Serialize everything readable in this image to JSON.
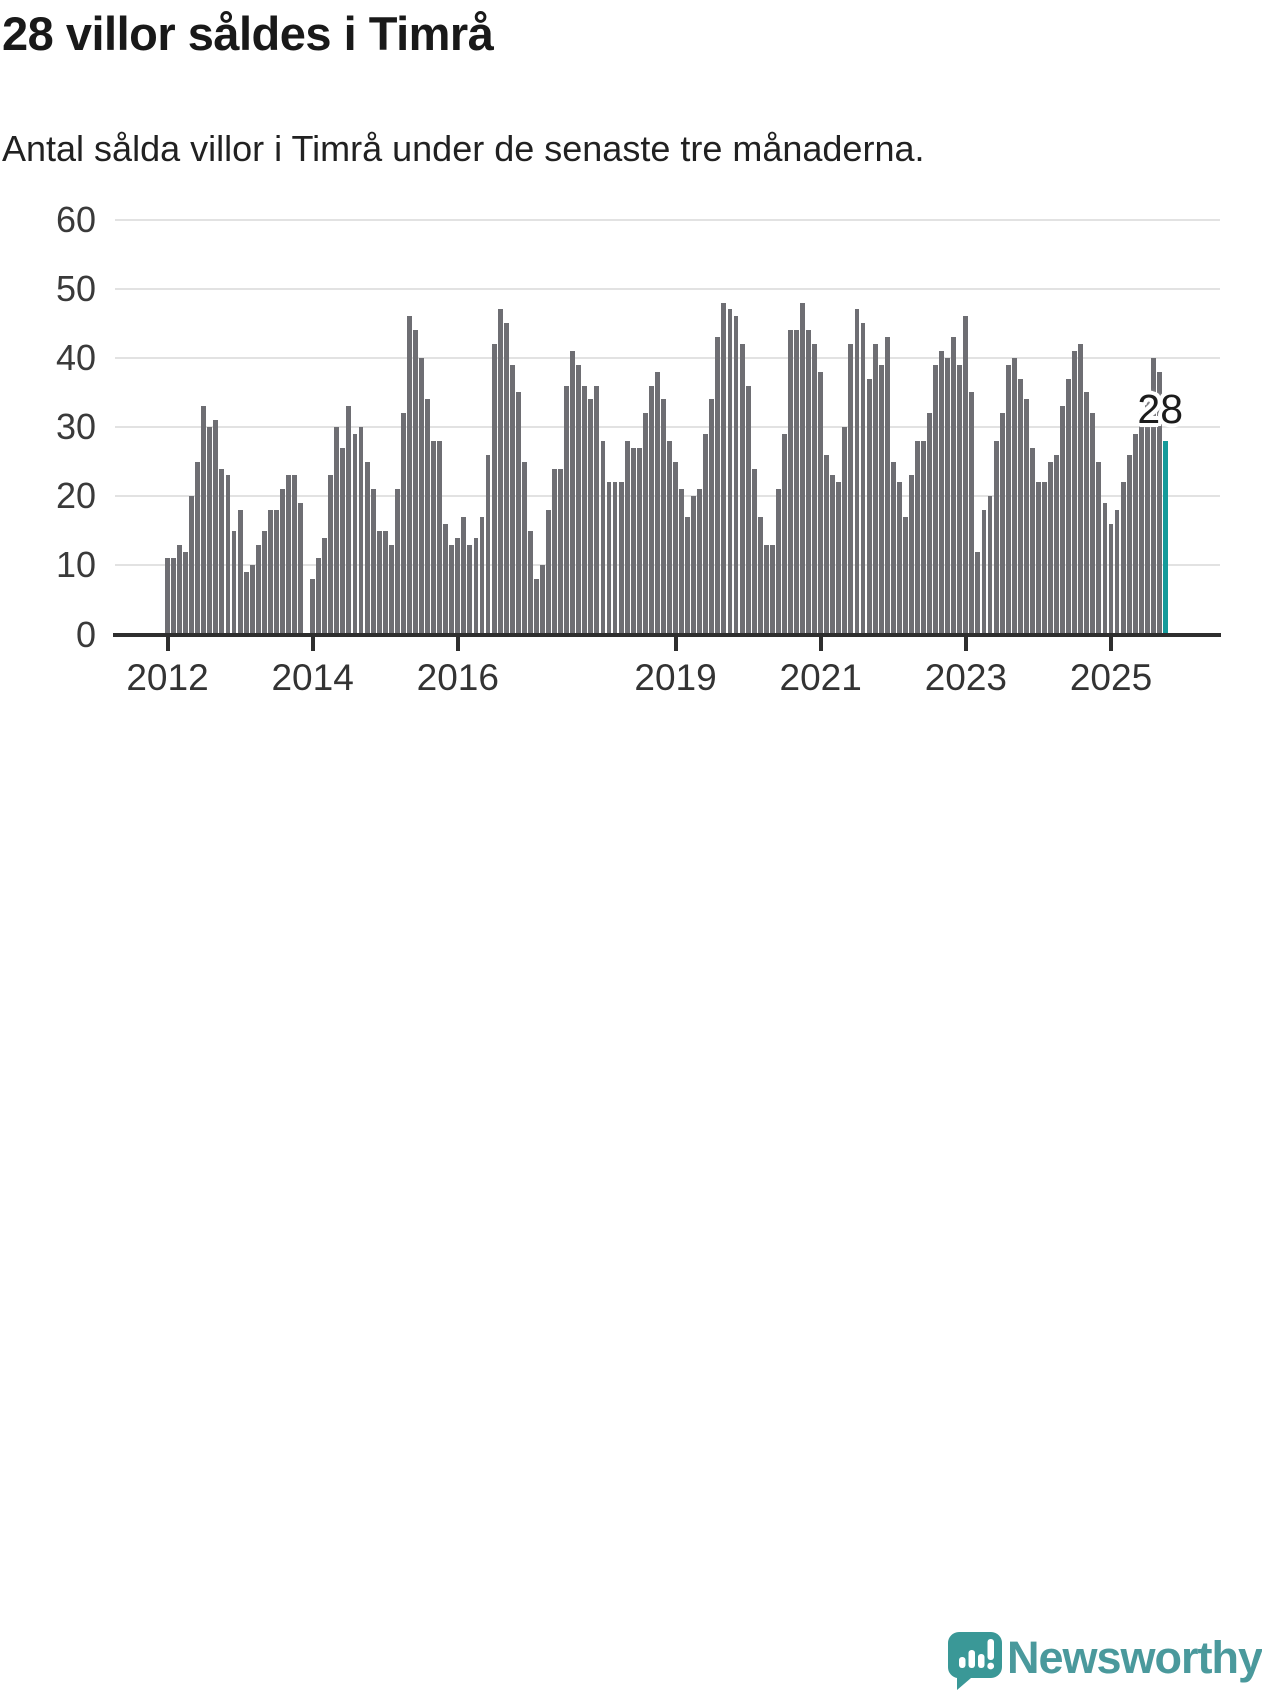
{
  "header": {
    "title": "28 villor såldes i Timrå",
    "subtitle": "Antal sålda villor i Timrå under de senaste tre månaderna."
  },
  "chart_data": {
    "type": "bar",
    "title": "28 villor såldes i Timrå",
    "subtitle": "Antal sålda villor i Timrå under de senaste tre månaderna.",
    "xlabel": "",
    "ylabel": "",
    "x_start": {
      "year": 2012,
      "month": 1
    },
    "frequency": "monthly",
    "note": "rolling 3-month count of sold houses; one empty gap month in late 2013 (value 0)",
    "values": [
      11,
      11,
      13,
      12,
      20,
      25,
      33,
      30,
      31,
      24,
      23,
      15,
      18,
      9,
      10,
      13,
      15,
      18,
      18,
      21,
      23,
      23,
      19,
      0,
      8,
      11,
      14,
      23,
      30,
      27,
      33,
      29,
      30,
      25,
      21,
      15,
      15,
      13,
      21,
      32,
      46,
      44,
      40,
      34,
      28,
      28,
      16,
      13,
      14,
      17,
      13,
      14,
      17,
      26,
      42,
      47,
      45,
      39,
      35,
      25,
      15,
      8,
      10,
      18,
      24,
      24,
      36,
      41,
      39,
      36,
      34,
      36,
      28,
      22,
      22,
      22,
      28,
      27,
      27,
      32,
      36,
      38,
      34,
      28,
      25,
      21,
      17,
      20,
      21,
      29,
      34,
      43,
      48,
      47,
      46,
      42,
      36,
      24,
      17,
      13,
      13,
      21,
      29,
      44,
      44,
      48,
      44,
      42,
      38,
      26,
      23,
      22,
      30,
      42,
      47,
      45,
      37,
      42,
      39,
      43,
      25,
      22,
      17,
      23,
      28,
      28,
      32,
      39,
      41,
      40,
      43,
      39,
      46,
      35,
      12,
      18,
      20,
      28,
      32,
      39,
      40,
      37,
      34,
      27,
      22,
      22,
      25,
      26,
      33,
      37,
      41,
      42,
      35,
      32,
      25,
      19,
      16,
      18,
      22,
      26,
      29,
      32,
      35,
      40,
      38,
      28
    ],
    "ylim": [
      0,
      60
    ],
    "yticks": [
      0,
      10,
      20,
      30,
      40,
      50,
      60
    ],
    "xticks": [
      {
        "label": "2012",
        "month_index": 0
      },
      {
        "label": "2014",
        "month_index": 24
      },
      {
        "label": "2016",
        "month_index": 48
      },
      {
        "label": "2019",
        "month_index": 84
      },
      {
        "label": "2021",
        "month_index": 108
      },
      {
        "label": "2023",
        "month_index": 132
      },
      {
        "label": "2025",
        "month_index": 156
      }
    ],
    "grid": "horizontal",
    "legend": "none",
    "bar_color": "#6e6e73",
    "highlight_color": "#149a9a",
    "highlight_index": 165,
    "highlight_value": 28,
    "annotation": {
      "text": "28"
    }
  },
  "footer": {
    "brand": "Newsworthy",
    "logo_icon": "newsworthy-speech-bubble-chart-icon",
    "brand_color": "#4a999c",
    "icon_color": "#3a9897"
  }
}
